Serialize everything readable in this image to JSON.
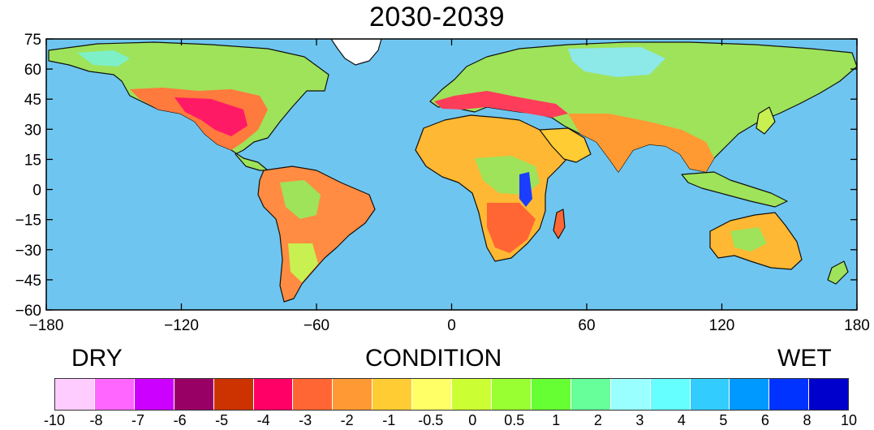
{
  "title": "2030-2039",
  "map": {
    "ocean_color": "#6ec6f0",
    "x_ticks": [
      "−180",
      "−120",
      "−60",
      "0",
      "60",
      "120",
      "180"
    ],
    "y_ticks": [
      "75",
      "60",
      "45",
      "30",
      "15",
      "0",
      "−15",
      "−30",
      "−45",
      "−60"
    ],
    "x_range": [
      -180,
      180
    ],
    "y_range": [
      -60,
      75
    ]
  },
  "legend": {
    "dry_label": "DRY",
    "center_label": "CONDITION",
    "wet_label": "WET",
    "colors": [
      "#ffccff",
      "#ff66ff",
      "#cc00ff",
      "#990066",
      "#cc3300",
      "#ff0066",
      "#ff6633",
      "#ff9933",
      "#ffcc33",
      "#ffff66",
      "#ccff33",
      "#99ff33",
      "#66ff33",
      "#66ff99",
      "#99ffff",
      "#66ffff",
      "#33ccff",
      "#0099ff",
      "#0033ff",
      "#0000cc"
    ],
    "tick_labels": [
      "-10",
      "-8",
      "-7",
      "-6",
      "-5",
      "-4",
      "-3",
      "-2",
      "-1",
      "-0.5",
      "0",
      "0.5",
      "1",
      "2",
      "3",
      "4",
      "5",
      "6",
      "8",
      "10"
    ]
  }
}
